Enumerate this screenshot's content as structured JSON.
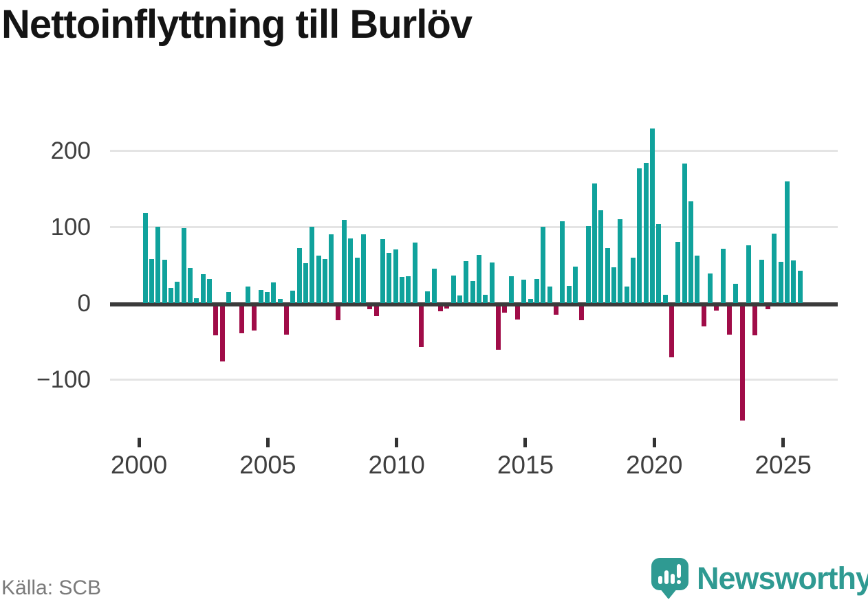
{
  "title": "Nettoinflyttning till Burlöv",
  "source": "Källa: SCB",
  "branding": {
    "logo_text": "Newsworthy",
    "logo_icon": "speech-bubble-with-bar-chart-and-exclamation"
  },
  "colors": {
    "positive_bar": "#10a29c",
    "negative_bar": "#a00c48",
    "zero_axis": "#3b3b3b",
    "gridline": "#e4e4e4",
    "title_text": "#141414",
    "tick_text": "#3f3f3f",
    "source_text": "#7a7a7a",
    "logo_teal": "#2f9a92"
  },
  "chart_data": {
    "type": "bar",
    "title": "Nettoinflyttning till Burlöv",
    "frequency": "quarterly",
    "x_start": "2000 Q1",
    "x_end": "2025 Q3",
    "xlabel": "",
    "ylabel": "",
    "ylim": [
      -160,
      240
    ],
    "grid": "horizontal",
    "legend": "none",
    "xticks": [
      "2000",
      "2005",
      "2010",
      "2015",
      "2020",
      "2025"
    ],
    "yticks": [
      {
        "label": "200",
        "value": 200
      },
      {
        "label": "100",
        "value": 100
      },
      {
        "label": "0",
        "value": 0
      },
      {
        "label": "−100",
        "value": -100
      }
    ],
    "categories": [
      "2000 Q1",
      "2000 Q2",
      "2000 Q3",
      "2000 Q4",
      "2001 Q1",
      "2001 Q2",
      "2001 Q3",
      "2001 Q4",
      "2002 Q1",
      "2002 Q2",
      "2002 Q3",
      "2002 Q4",
      "2003 Q1",
      "2003 Q2",
      "2003 Q3",
      "2003 Q4",
      "2004 Q1",
      "2004 Q2",
      "2004 Q3",
      "2004 Q4",
      "2005 Q1",
      "2005 Q2",
      "2005 Q3",
      "2005 Q4",
      "2006 Q1",
      "2006 Q2",
      "2006 Q3",
      "2006 Q4",
      "2007 Q1",
      "2007 Q2",
      "2007 Q3",
      "2007 Q4",
      "2008 Q1",
      "2008 Q2",
      "2008 Q3",
      "2008 Q4",
      "2009 Q1",
      "2009 Q2",
      "2009 Q3",
      "2009 Q4",
      "2010 Q1",
      "2010 Q2",
      "2010 Q3",
      "2010 Q4",
      "2011 Q1",
      "2011 Q2",
      "2011 Q3",
      "2011 Q4",
      "2012 Q1",
      "2012 Q2",
      "2012 Q3",
      "2012 Q4",
      "2013 Q1",
      "2013 Q2",
      "2013 Q3",
      "2013 Q4",
      "2014 Q1",
      "2014 Q2",
      "2014 Q3",
      "2014 Q4",
      "2015 Q1",
      "2015 Q2",
      "2015 Q3",
      "2015 Q4",
      "2016 Q1",
      "2016 Q2",
      "2016 Q3",
      "2016 Q4",
      "2017 Q1",
      "2017 Q2",
      "2017 Q3",
      "2017 Q4",
      "2018 Q1",
      "2018 Q2",
      "2018 Q3",
      "2018 Q4",
      "2019 Q1",
      "2019 Q2",
      "2019 Q3",
      "2019 Q4",
      "2020 Q1",
      "2020 Q2",
      "2020 Q3",
      "2020 Q4",
      "2021 Q1",
      "2021 Q2",
      "2021 Q3",
      "2021 Q4",
      "2022 Q1",
      "2022 Q2",
      "2022 Q3",
      "2022 Q4",
      "2023 Q1",
      "2023 Q2",
      "2023 Q3",
      "2023 Q4",
      "2024 Q1",
      "2024 Q2",
      "2024 Q3",
      "2024 Q4",
      "2025 Q1",
      "2025 Q2",
      "2025 Q3"
    ],
    "series": [
      {
        "name": "Nettoinflyttning",
        "values": [
          118,
          58,
          100,
          57,
          20,
          28,
          98,
          46,
          6,
          38,
          32,
          -38,
          -72,
          14,
          0,
          -35,
          22,
          -32,
          17,
          14,
          27,
          5,
          -37,
          16,
          72,
          52,
          100,
          62,
          58,
          90,
          -18,
          109,
          85,
          60,
          90,
          -4,
          -13,
          84,
          66,
          70,
          34,
          35,
          79,
          -53,
          15,
          45,
          -6,
          -3,
          36,
          10,
          55,
          29,
          63,
          11,
          53,
          -57,
          -8,
          35,
          -17,
          31,
          5,
          32,
          100,
          22,
          -11,
          107,
          23,
          48,
          -18,
          101,
          157,
          122,
          72,
          47,
          110,
          22,
          60,
          177,
          184,
          229,
          104,
          11,
          -67,
          80,
          183,
          134,
          62,
          -26,
          39,
          -5,
          71,
          -37,
          25,
          -150,
          76,
          -38,
          57,
          -4,
          91,
          54,
          160,
          56,
          42
        ]
      }
    ]
  }
}
